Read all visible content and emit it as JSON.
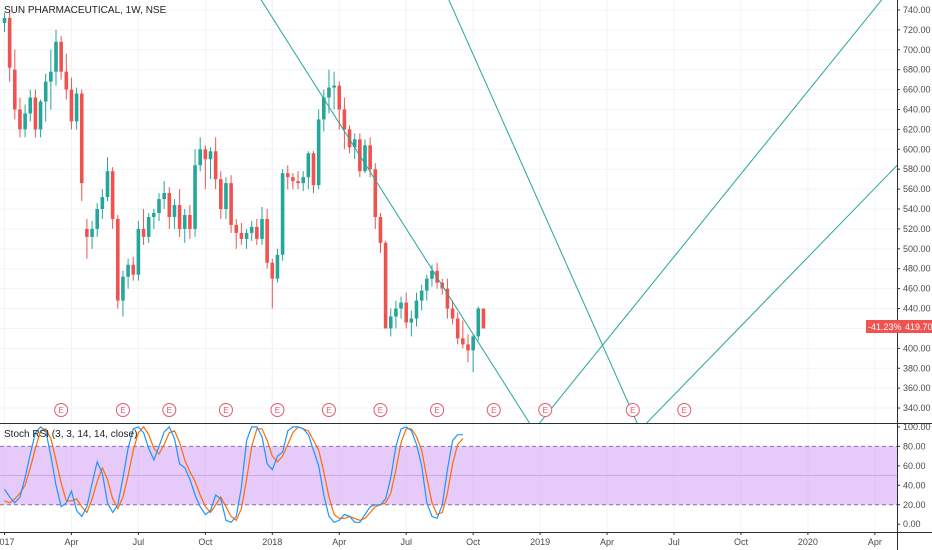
{
  "chart_data": {
    "type": "candlestick",
    "title": "SUN PHARMACEUTICAL, 1W, NSE",
    "price_axis": {
      "ylim": [
        325,
        750
      ],
      "ticks": [
        340,
        360,
        380,
        400,
        420,
        440,
        460,
        480,
        500,
        520,
        540,
        560,
        580,
        600,
        620,
        640,
        660,
        680,
        700,
        720,
        740
      ],
      "tick_labels": [
        "340.00",
        "360.00",
        "380.00",
        "400.00",
        "420.00",
        "440.00",
        "460.00",
        "480.00",
        "500.00",
        "520.00",
        "540.00",
        "560.00",
        "580.00",
        "600.00",
        "620.00",
        "640.00",
        "660.00",
        "680.00",
        "700.00",
        "720.00",
        "740.00"
      ]
    },
    "time_axis": {
      "labels": [
        "2017",
        "Apr",
        "Jul",
        "Oct",
        "2018",
        "Apr",
        "Jul",
        "Oct",
        "2019",
        "Apr",
        "Jul",
        "Oct",
        "2020",
        "Apr"
      ],
      "week_positions": [
        0,
        13,
        26,
        39,
        52,
        65,
        78,
        91,
        104,
        117,
        130,
        143,
        156,
        169
      ]
    },
    "colors": {
      "up": "#26a69a",
      "down": "#ef5350",
      "trend": "#26a69a",
      "stoch_k": "#2196f3",
      "stoch_d": "#ff6d00",
      "band": "#d4a6f7"
    },
    "candles": [
      [
        727,
        737,
        718,
        732
      ],
      [
        732,
        740,
        668,
        682
      ],
      [
        680,
        700,
        630,
        640
      ],
      [
        640,
        652,
        612,
        620
      ],
      [
        620,
        645,
        612,
        636
      ],
      [
        636,
        660,
        628,
        652
      ],
      [
        652,
        660,
        612,
        620
      ],
      [
        620,
        650,
        612,
        648
      ],
      [
        648,
        676,
        628,
        668
      ],
      [
        668,
        700,
        640,
        678
      ],
      [
        678,
        720,
        664,
        708
      ],
      [
        708,
        714,
        670,
        678
      ],
      [
        678,
        696,
        650,
        660
      ],
      [
        660,
        672,
        620,
        628
      ],
      [
        628,
        662,
        620,
        656
      ],
      [
        656,
        660,
        548,
        566
      ],
      [
        520,
        530,
        490,
        512
      ],
      [
        512,
        528,
        500,
        520
      ],
      [
        520,
        546,
        512,
        540
      ],
      [
        540,
        560,
        530,
        552
      ],
      [
        552,
        592,
        548,
        578
      ],
      [
        578,
        582,
        520,
        530
      ],
      [
        530,
        534,
        440,
        448
      ],
      [
        448,
        478,
        432,
        472
      ],
      [
        472,
        490,
        460,
        484
      ],
      [
        484,
        492,
        468,
        474
      ],
      [
        474,
        528,
        468,
        520
      ],
      [
        520,
        540,
        504,
        512
      ],
      [
        512,
        536,
        506,
        532
      ],
      [
        532,
        540,
        520,
        536
      ],
      [
        536,
        556,
        528,
        550
      ],
      [
        550,
        568,
        540,
        556
      ],
      [
        556,
        562,
        520,
        532
      ],
      [
        532,
        550,
        520,
        544
      ],
      [
        544,
        560,
        512,
        520
      ],
      [
        520,
        540,
        506,
        534
      ],
      [
        534,
        544,
        510,
        520
      ],
      [
        520,
        600,
        512,
        584
      ],
      [
        584,
        612,
        578,
        600
      ],
      [
        600,
        604,
        560,
        590
      ],
      [
        590,
        602,
        570,
        598
      ],
      [
        598,
        612,
        560,
        570
      ],
      [
        570,
        578,
        530,
        540
      ],
      [
        540,
        572,
        530,
        566
      ],
      [
        566,
        574,
        516,
        524
      ],
      [
        524,
        530,
        500,
        516
      ],
      [
        516,
        526,
        504,
        510
      ],
      [
        510,
        520,
        500,
        516
      ],
      [
        516,
        528,
        508,
        522
      ],
      [
        522,
        530,
        504,
        510
      ],
      [
        510,
        542,
        504,
        530
      ],
      [
        530,
        540,
        480,
        486
      ],
      [
        486,
        490,
        440,
        470
      ],
      [
        470,
        500,
        466,
        494
      ],
      [
        494,
        580,
        488,
        576
      ],
      [
        576,
        584,
        560,
        572
      ],
      [
        572,
        576,
        560,
        568
      ],
      [
        568,
        578,
        560,
        566
      ],
      [
        566,
        578,
        558,
        572
      ],
      [
        572,
        598,
        560,
        596
      ],
      [
        596,
        598,
        556,
        564
      ],
      [
        564,
        640,
        560,
        630
      ],
      [
        630,
        660,
        618,
        652
      ],
      [
        652,
        680,
        636,
        662
      ],
      [
        662,
        678,
        640,
        664
      ],
      [
        664,
        668,
        620,
        640
      ],
      [
        640,
        652,
        600,
        620
      ],
      [
        620,
        624,
        596,
        602
      ],
      [
        602,
        616,
        590,
        610
      ],
      [
        610,
        616,
        572,
        578
      ],
      [
        578,
        610,
        576,
        604
      ],
      [
        604,
        612,
        572,
        580
      ],
      [
        580,
        586,
        520,
        532
      ],
      [
        532,
        536,
        496,
        506
      ],
      [
        506,
        508,
        420,
        420
      ],
      [
        420,
        440,
        412,
        432
      ],
      [
        432,
        448,
        420,
        440
      ],
      [
        440,
        452,
        430,
        446
      ],
      [
        446,
        456,
        420,
        426
      ],
      [
        426,
        438,
        412,
        430
      ],
      [
        430,
        456,
        422,
        448
      ],
      [
        448,
        464,
        438,
        458
      ],
      [
        458,
        474,
        448,
        470
      ],
      [
        470,
        484,
        462,
        478
      ],
      [
        478,
        486,
        460,
        466
      ],
      [
        466,
        470,
        454,
        460
      ],
      [
        460,
        470,
        430,
        440
      ],
      [
        440,
        448,
        424,
        430
      ],
      [
        430,
        436,
        404,
        410
      ],
      [
        410,
        428,
        400,
        404
      ],
      [
        404,
        414,
        386,
        398
      ],
      [
        398,
        414,
        376,
        412
      ],
      [
        412,
        442,
        408,
        440
      ],
      [
        440,
        440,
        420,
        420
      ]
    ],
    "trendlines": [
      {
        "from": [
          48,
          765
        ],
        "to": [
          105,
          300
        ]
      },
      {
        "from": [
          85,
          765
        ],
        "to": [
          125,
          300
        ]
      },
      {
        "from": [
          100,
          300
        ],
        "to": [
          175,
          780
        ]
      },
      {
        "from": [
          120,
          300
        ],
        "to": [
          182,
          630
        ]
      }
    ],
    "earnings_marker": "E",
    "earnings_weeks": [
      11,
      23,
      32,
      43,
      53,
      63,
      73,
      84,
      95,
      105,
      122,
      132
    ],
    "last_price": "419.70",
    "change_label": "-41.23%",
    "stoch_rsi": {
      "label": "Stoch RSI (3, 3, 14, 14, close)",
      "ylim": [
        -8,
        104
      ],
      "ticks": [
        0,
        20,
        40,
        60,
        80,
        100
      ],
      "tick_labels": [
        "0.00",
        "20.00",
        "40.00",
        "60.00",
        "80.00",
        "100.00"
      ],
      "bands": [
        20,
        80
      ],
      "k": [
        36,
        28,
        22,
        28,
        48,
        72,
        94,
        100,
        96,
        70,
        40,
        18,
        22,
        34,
        14,
        8,
        18,
        42,
        64,
        52,
        22,
        12,
        20,
        48,
        78,
        98,
        100,
        94,
        78,
        66,
        80,
        95,
        100,
        88,
        62,
        58,
        46,
        30,
        18,
        10,
        14,
        30,
        26,
        4,
        2,
        8,
        38,
        86,
        100,
        100,
        90,
        62,
        56,
        70,
        74,
        96,
        100,
        100,
        98,
        92,
        76,
        60,
        30,
        8,
        2,
        4,
        10,
        8,
        2,
        2,
        10,
        18,
        20,
        20,
        26,
        48,
        80,
        98,
        100,
        96,
        82,
        60,
        22,
        8,
        6,
        20,
        56,
        86,
        92,
        92
      ],
      "d": [
        24,
        22,
        26,
        32,
        40,
        58,
        78,
        96,
        98,
        88,
        66,
        42,
        24,
        24,
        26,
        18,
        12,
        26,
        44,
        58,
        46,
        26,
        16,
        28,
        50,
        76,
        94,
        100,
        92,
        78,
        72,
        82,
        94,
        96,
        84,
        66,
        54,
        44,
        30,
        18,
        12,
        20,
        28,
        18,
        8,
        4,
        16,
        46,
        80,
        98,
        98,
        86,
        70,
        64,
        70,
        82,
        94,
        100,
        98,
        96,
        86,
        76,
        54,
        28,
        10,
        6,
        6,
        8,
        6,
        4,
        6,
        12,
        18,
        20,
        22,
        32,
        56,
        84,
        98,
        98,
        90,
        76,
        48,
        22,
        10,
        12,
        32,
        62,
        82,
        88
      ]
    }
  }
}
